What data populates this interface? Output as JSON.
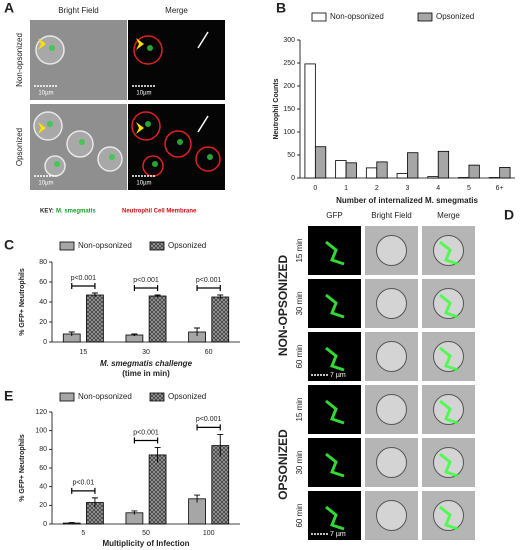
{
  "panels": {
    "A": {
      "letter": "A",
      "headers": [
        "Bright Field",
        "Merge"
      ],
      "rows": [
        "Non-opsonized",
        "Opsonized"
      ],
      "scale_bars": [
        "10µm",
        "10µm",
        "10µm",
        "10µm"
      ],
      "key": {
        "label": "KEY:",
        "items": [
          "M. smegmatis",
          "Neutrophil Cell Membrane"
        ]
      }
    },
    "D": {
      "letter": "D",
      "headers": [
        "GFP",
        "Bright Field",
        "Merge"
      ],
      "groups": [
        "NON-OPSONIZED",
        "OPSONIZED"
      ],
      "rows": [
        "15 min",
        "30 min",
        "60 min",
        "15 min",
        "30 min",
        "60 min"
      ],
      "scale_bars": [
        "7 µm",
        "7 µm"
      ]
    }
  },
  "chart_data": [
    {
      "type": "bar",
      "panel": "B",
      "ylabel": "Neutrophil Counts",
      "xlabel": "Number of internalized M. smegmatis",
      "categories": [
        "0",
        "1",
        "2",
        "3",
        "4",
        "5",
        "6+"
      ],
      "series": [
        {
          "name": "Non-opsonized",
          "color": "#ffffff",
          "values": [
            248,
            38,
            22,
            10,
            3,
            1,
            1
          ]
        },
        {
          "name": "Opsonized",
          "color": "#a6a6a6",
          "values": [
            68,
            33,
            35,
            55,
            58,
            28,
            23
          ]
        }
      ],
      "ylim": [
        0,
        300
      ],
      "yticks": [
        0,
        50,
        100,
        150,
        200,
        250,
        300
      ]
    },
    {
      "type": "bar",
      "panel": "C",
      "ylabel": "% GFP+ Neutrophils",
      "xlabel": [
        "M. smegmatis challenge",
        "(time in min)"
      ],
      "categories": [
        "15",
        "30",
        "60"
      ],
      "series": [
        {
          "name": "Non-opsonized",
          "color": "#a6a6a6",
          "values": [
            8,
            7,
            10
          ],
          "errors": [
            2,
            1,
            4
          ]
        },
        {
          "name": "Opsonized",
          "color": "#9a9a9a",
          "hatch": true,
          "values": [
            47,
            46,
            45
          ],
          "errors": [
            2,
            1,
            2
          ]
        }
      ],
      "annotations": [
        "p<0.001",
        "p<0.001",
        "p<0.001"
      ],
      "ylim": [
        0,
        80
      ],
      "yticks": [
        0,
        20,
        40,
        60,
        80
      ]
    },
    {
      "type": "bar",
      "panel": "E",
      "ylabel": "% GFP+ Neutrophils",
      "xlabel": "Multiplicity of Infection",
      "categories": [
        "5",
        "50",
        "100"
      ],
      "series": [
        {
          "name": "Non-opsonized",
          "color": "#a6a6a6",
          "values": [
            1,
            12,
            27
          ],
          "errors": [
            0.5,
            2,
            4
          ]
        },
        {
          "name": "Opsonized",
          "color": "#9a9a9a",
          "hatch": true,
          "values": [
            23,
            74,
            84
          ],
          "errors": [
            5,
            8,
            12
          ]
        }
      ],
      "annotations": [
        "p<0.01",
        "p<0.001",
        "p<0.001"
      ],
      "ylim": [
        0,
        120
      ],
      "yticks": [
        0,
        20,
        40,
        60,
        80,
        100,
        120
      ]
    }
  ]
}
